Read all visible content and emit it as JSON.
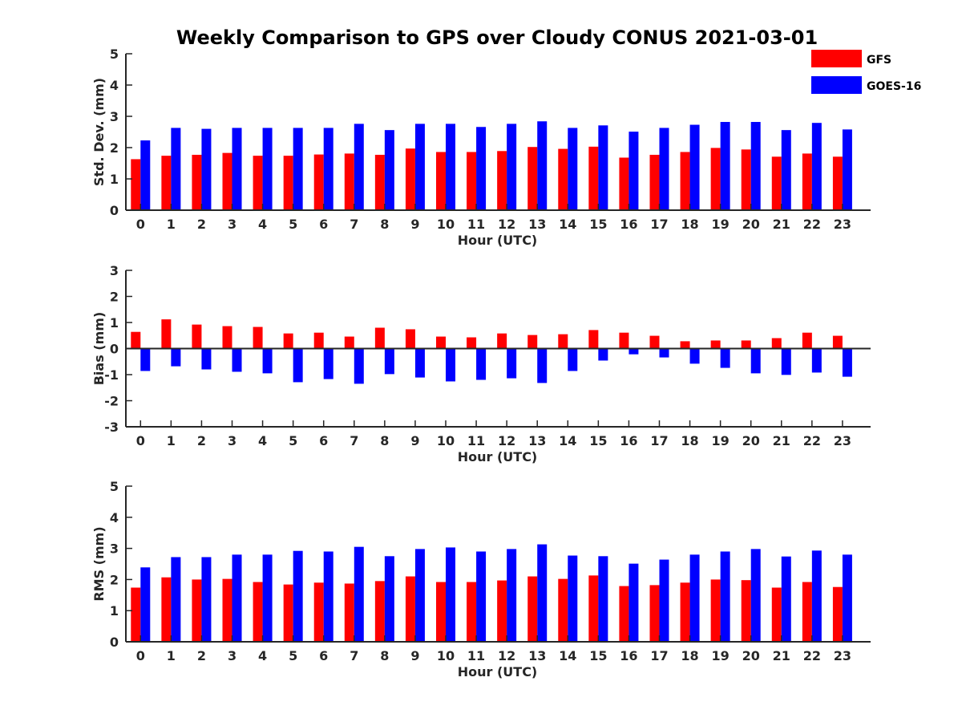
{
  "title": "Weekly Comparison to GPS over Cloudy CONUS 2021-03-01",
  "legend": {
    "position": "top-right"
  },
  "colors": {
    "GFS": "#ff0000",
    "GOES-16": "#0000ff"
  },
  "chart_data": [
    {
      "type": "bar",
      "ylabel": "Std. Dev. (mm)",
      "xlabel": "Hour (UTC)",
      "ylim": [
        0,
        5
      ],
      "yticks": [
        "0",
        "1",
        "2",
        "3",
        "4",
        "5"
      ],
      "categories": [
        "0",
        "1",
        "2",
        "3",
        "4",
        "5",
        "6",
        "7",
        "8",
        "9",
        "10",
        "11",
        "12",
        "13",
        "14",
        "15",
        "16",
        "17",
        "18",
        "19",
        "20",
        "21",
        "22",
        "23"
      ],
      "series": [
        {
          "name": "GFS",
          "values": [
            1.63,
            1.74,
            1.77,
            1.83,
            1.74,
            1.74,
            1.78,
            1.81,
            1.77,
            1.97,
            1.86,
            1.86,
            1.89,
            2.02,
            1.96,
            2.03,
            1.68,
            1.77,
            1.86,
            1.99,
            1.94,
            1.71,
            1.81,
            1.71
          ]
        },
        {
          "name": "GOES-16",
          "values": [
            2.23,
            2.63,
            2.6,
            2.63,
            2.63,
            2.63,
            2.63,
            2.76,
            2.56,
            2.76,
            2.76,
            2.66,
            2.76,
            2.84,
            2.63,
            2.71,
            2.51,
            2.63,
            2.73,
            2.82,
            2.82,
            2.56,
            2.79,
            2.58
          ]
        }
      ]
    },
    {
      "type": "bar",
      "ylabel": "Bias (mm)",
      "xlabel": "Hour (UTC)",
      "ylim": [
        -3,
        3
      ],
      "yticks": [
        "-3",
        "-2",
        "-1",
        "0",
        "1",
        "2",
        "3"
      ],
      "categories": [
        "0",
        "1",
        "2",
        "3",
        "4",
        "5",
        "6",
        "7",
        "8",
        "9",
        "10",
        "11",
        "12",
        "13",
        "14",
        "15",
        "16",
        "17",
        "18",
        "19",
        "20",
        "21",
        "22",
        "23"
      ],
      "series": [
        {
          "name": "GFS",
          "values": [
            0.64,
            1.12,
            0.92,
            0.86,
            0.83,
            0.58,
            0.61,
            0.46,
            0.8,
            0.74,
            0.46,
            0.43,
            0.58,
            0.52,
            0.55,
            0.71,
            0.61,
            0.49,
            0.28,
            0.31,
            0.31,
            0.4,
            0.61,
            0.49
          ]
        },
        {
          "name": "GOES-16",
          "values": [
            -0.86,
            -0.68,
            -0.8,
            -0.89,
            -0.95,
            -1.29,
            -1.17,
            -1.35,
            -0.98,
            -1.11,
            -1.26,
            -1.2,
            -1.14,
            -1.32,
            -0.86,
            -0.46,
            -0.22,
            -0.34,
            -0.58,
            -0.74,
            -0.95,
            -1.01,
            -0.92,
            -1.08
          ]
        }
      ]
    },
    {
      "type": "bar",
      "ylabel": "RMS (mm)",
      "xlabel": "Hour (UTC)",
      "ylim": [
        0,
        5
      ],
      "yticks": [
        "0",
        "1",
        "2",
        "3",
        "4",
        "5"
      ],
      "categories": [
        "0",
        "1",
        "2",
        "3",
        "4",
        "5",
        "6",
        "7",
        "8",
        "9",
        "10",
        "11",
        "12",
        "13",
        "14",
        "15",
        "16",
        "17",
        "18",
        "19",
        "20",
        "21",
        "22",
        "23"
      ],
      "series": [
        {
          "name": "GFS",
          "values": [
            1.74,
            2.07,
            2.0,
            2.02,
            1.92,
            1.84,
            1.9,
            1.87,
            1.95,
            2.1,
            1.92,
            1.92,
            1.97,
            2.1,
            2.02,
            2.13,
            1.79,
            1.82,
            1.9,
            2.0,
            1.98,
            1.74,
            1.92,
            1.76
          ]
        },
        {
          "name": "GOES-16",
          "values": [
            2.39,
            2.72,
            2.72,
            2.8,
            2.8,
            2.92,
            2.9,
            3.05,
            2.75,
            2.98,
            3.03,
            2.9,
            2.98,
            3.13,
            2.77,
            2.75,
            2.51,
            2.64,
            2.8,
            2.9,
            2.98,
            2.74,
            2.93,
            2.8
          ]
        }
      ]
    }
  ]
}
